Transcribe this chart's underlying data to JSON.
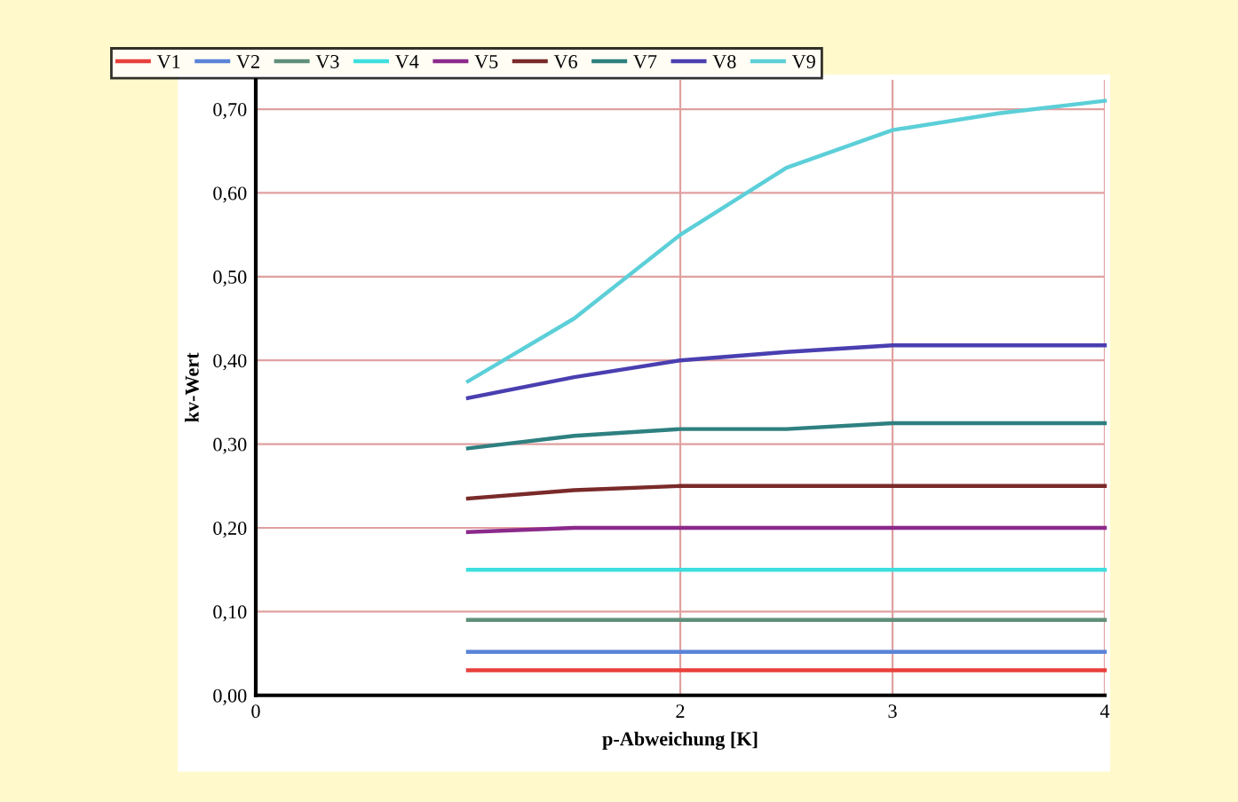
{
  "chart_data": {
    "type": "line",
    "xlabel": "p-Abweichung [K]",
    "ylabel": "kv-Wert",
    "x": [
      1,
      1.5,
      2,
      2.5,
      3,
      3.5,
      4
    ],
    "series": [
      {
        "name": "V1",
        "color": "#e8403c",
        "values": [
          0.03,
          0.03,
          0.03,
          0.03,
          0.03,
          0.03,
          0.03
        ]
      },
      {
        "name": "V2",
        "color": "#5a84d8",
        "values": [
          0.052,
          0.052,
          0.052,
          0.052,
          0.052,
          0.052,
          0.052
        ]
      },
      {
        "name": "V3",
        "color": "#5f8f7a",
        "values": [
          0.09,
          0.09,
          0.09,
          0.09,
          0.09,
          0.09,
          0.09
        ]
      },
      {
        "name": "V4",
        "color": "#3fdede",
        "values": [
          0.15,
          0.15,
          0.15,
          0.15,
          0.15,
          0.15,
          0.15
        ]
      },
      {
        "name": "V5",
        "color": "#8b2a8b",
        "values": [
          0.195,
          0.2,
          0.2,
          0.2,
          0.2,
          0.2,
          0.2
        ]
      },
      {
        "name": "V6",
        "color": "#7a2a2a",
        "values": [
          0.235,
          0.245,
          0.25,
          0.25,
          0.25,
          0.25,
          0.25
        ]
      },
      {
        "name": "V7",
        "color": "#2f8080",
        "values": [
          0.295,
          0.31,
          0.318,
          0.318,
          0.325,
          0.325,
          0.325
        ]
      },
      {
        "name": "V8",
        "color": "#4a3fb0",
        "values": [
          0.355,
          0.38,
          0.4,
          0.41,
          0.418,
          0.418,
          0.418
        ]
      },
      {
        "name": "V9",
        "color": "#5ccfd8",
        "values": [
          0.375,
          0.45,
          0.55,
          0.63,
          0.675,
          0.695,
          0.71
        ]
      }
    ],
    "xlim": [
      0,
      4
    ],
    "xticks": [
      0,
      2,
      3,
      4
    ],
    "ylim": [
      0,
      0.735
    ],
    "yticks": [
      {
        "value": 0,
        "label": "0,00"
      },
      {
        "value": 0.1,
        "label": "0,10"
      },
      {
        "value": 0.2,
        "label": "0,20"
      },
      {
        "value": 0.3,
        "label": "0,30"
      },
      {
        "value": 0.4,
        "label": "0,40"
      },
      {
        "value": 0.5,
        "label": "0,50"
      },
      {
        "value": 0.6,
        "label": "0,60"
      },
      {
        "value": 0.7,
        "label": "0,70"
      }
    ],
    "grid": true,
    "legend": "top left",
    "marker": "none",
    "line_style": "solid"
  }
}
